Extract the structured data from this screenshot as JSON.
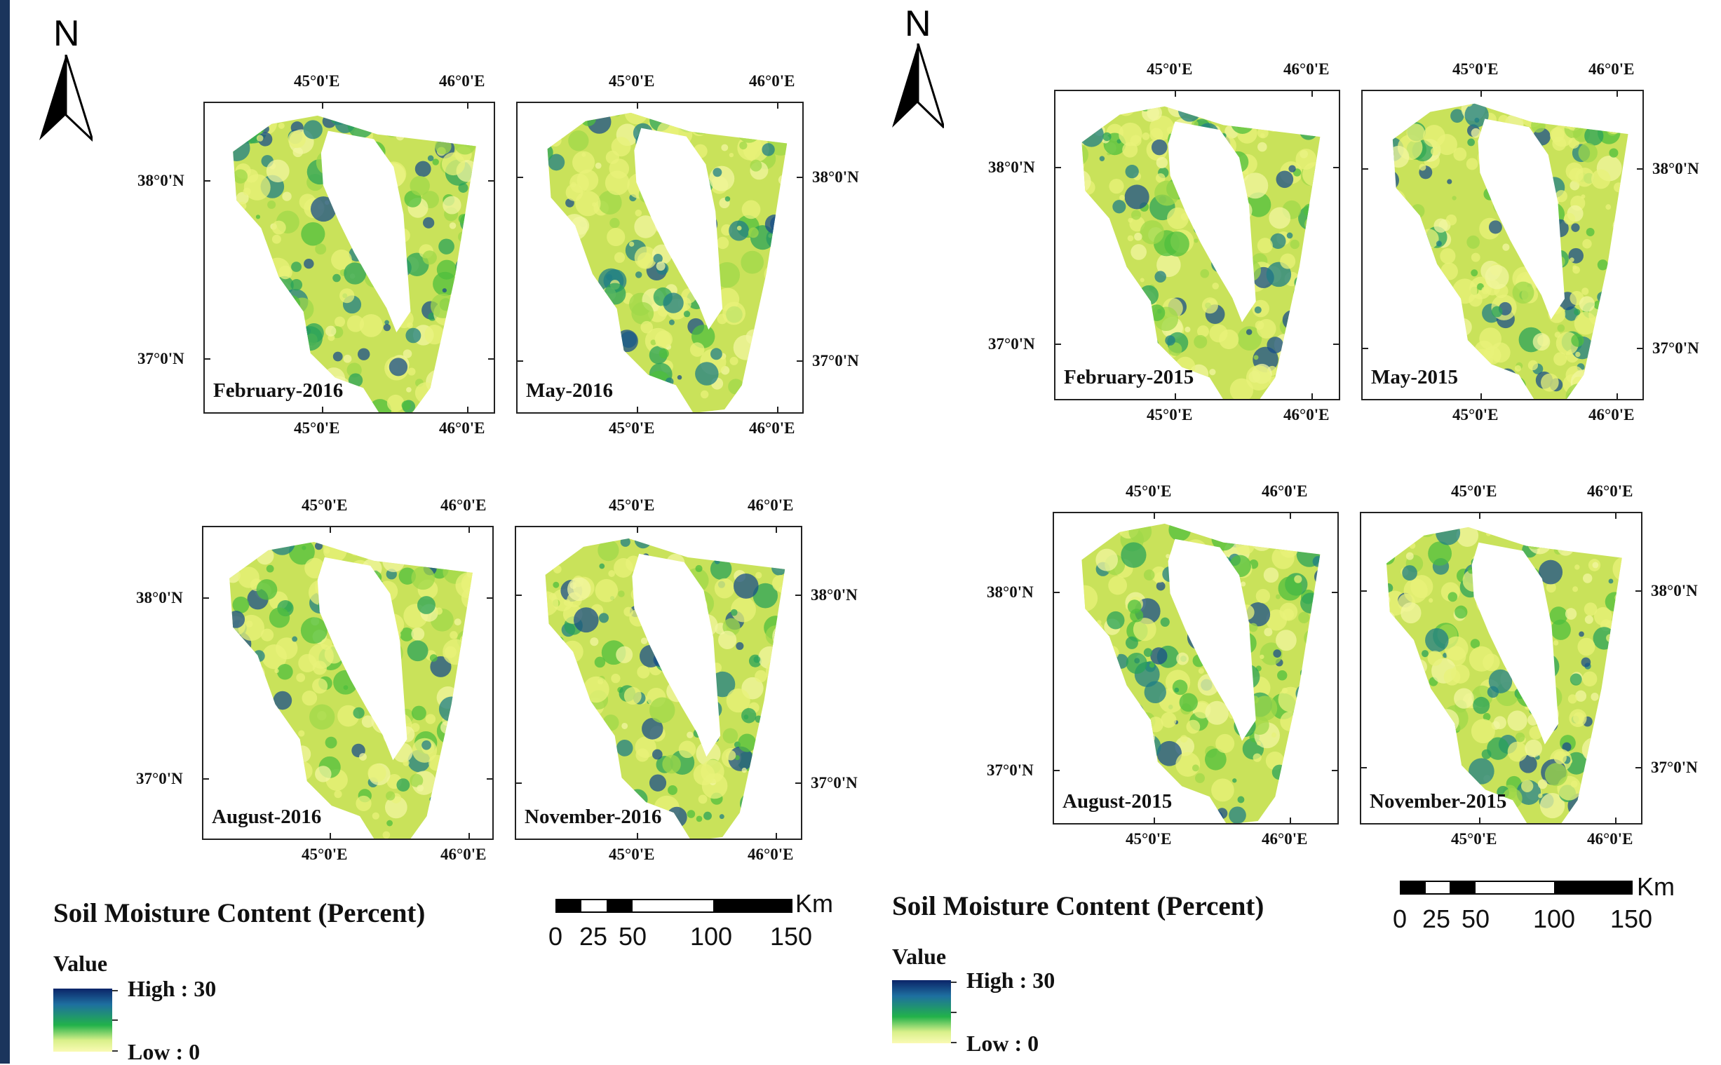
{
  "colors": {
    "sidebar": "#1b355c",
    "ramp_high": "#0b2468",
    "ramp_mid": "#22b24a",
    "ramp_low": "#fafab4",
    "land_base": "#c9e25a"
  },
  "north_arrow": {
    "letter": "N"
  },
  "longitudes": {
    "lon45": "45°0'E",
    "lon46": "46°0'E"
  },
  "latitudes": {
    "lat38": "38°0'N",
    "lat37": "37°0'N"
  },
  "panels": [
    {
      "label": "February-2016"
    },
    {
      "label": "May-2016"
    },
    {
      "label": "August-2016"
    },
    {
      "label": "November-2016"
    },
    {
      "label": "February-2015"
    },
    {
      "label": "May-2015"
    },
    {
      "label": "August-2015"
    },
    {
      "label": "November-2015"
    }
  ],
  "legend": {
    "title": "Soil Moisture Content (Percent)",
    "value_heading": "Value",
    "high": "High : 30",
    "low": "Low : 0"
  },
  "scale_bar": {
    "unit": "Km",
    "labels": [
      "0",
      "25",
      "50",
      "100",
      "150"
    ]
  }
}
